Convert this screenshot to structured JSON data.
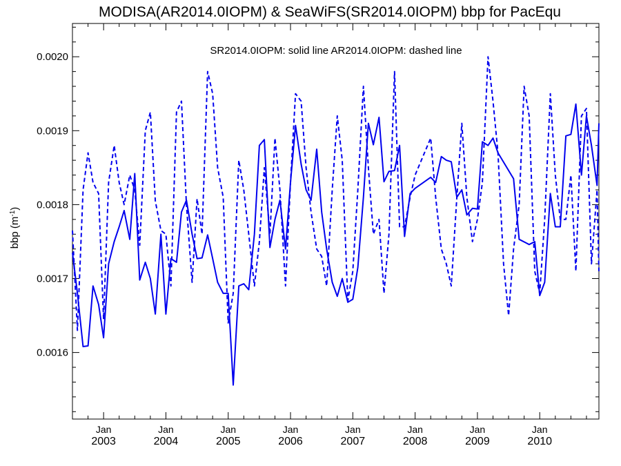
{
  "chart_data": {
    "type": "line",
    "title": "MODISA(AR2014.0IOPM) & SeaWiFS(SR2014.0IOPM)  bbp for PacEqu",
    "annotation": "SR2014.0IOPM: solid line   AR2014.0IOPM: dashed line",
    "ylabel": "bbp (m",
    "ylabel_sup": "-1",
    "ylabel_close": ")",
    "xlabel": "",
    "xlim": [
      2002.5,
      2010.95
    ],
    "ylim": [
      0.00151,
      0.002045
    ],
    "yticks": [
      {
        "value": 0.0016,
        "label": "0.0016"
      },
      {
        "value": 0.0017,
        "label": "0.0017"
      },
      {
        "value": 0.0018,
        "label": "0.0018"
      },
      {
        "value": 0.0019,
        "label": "0.0019"
      },
      {
        "value": 0.002,
        "label": "0.0020"
      }
    ],
    "xticks": [
      {
        "value": 2003.0,
        "month": "Jan",
        "year": "2003"
      },
      {
        "value": 2004.0,
        "month": "Jan",
        "year": "2004"
      },
      {
        "value": 2005.0,
        "month": "Jan",
        "year": "2005"
      },
      {
        "value": 2006.0,
        "month": "Jan",
        "year": "2006"
      },
      {
        "value": 2007.0,
        "month": "Jan",
        "year": "2007"
      },
      {
        "value": 2008.0,
        "month": "Jan",
        "year": "2008"
      },
      {
        "value": 2009.0,
        "month": "Jan",
        "year": "2009"
      },
      {
        "value": 2010.0,
        "month": "Jan",
        "year": "2010"
      }
    ],
    "grid": false,
    "colors": {
      "series": "#0000ee",
      "axis": "#000000"
    },
    "series": [
      {
        "style": "solid",
        "x": [
          2002.5,
          2002.58,
          2002.67,
          2002.75,
          2002.83,
          2002.92,
          2003.0,
          2003.08,
          2003.17,
          2003.25,
          2003.33,
          2003.42,
          2003.5,
          2003.58,
          2003.67,
          2003.75,
          2003.83,
          2003.92,
          2004.0,
          2004.08,
          2004.17,
          2004.25,
          2004.33,
          2004.42,
          2004.5,
          2004.58,
          2004.67,
          2004.75,
          2004.83,
          2004.92,
          2005.0,
          2005.08,
          2005.17,
          2005.25,
          2005.33,
          2005.42,
          2005.5,
          2005.58,
          2005.67,
          2005.75,
          2005.83,
          2005.92,
          2006.0,
          2006.08,
          2006.17,
          2006.25,
          2006.33,
          2006.42,
          2006.5,
          2006.58,
          2006.67,
          2006.75,
          2006.83,
          2006.92,
          2007.0,
          2007.08,
          2007.17,
          2007.25,
          2007.33,
          2007.42,
          2007.5,
          2007.58,
          2007.67,
          2007.75,
          2007.83,
          2007.92,
          2008.0,
          2008.25,
          2008.33,
          2008.42,
          2008.5,
          2008.58,
          2008.67,
          2008.75,
          2008.83,
          2008.92,
          2009.0,
          2009.08,
          2009.17,
          2009.25,
          2009.33,
          2009.58,
          2009.67,
          2009.83,
          2009.92,
          2010.0,
          2010.08,
          2010.17,
          2010.25,
          2010.33,
          2010.42,
          2010.5,
          2010.58,
          2010.67,
          2010.75,
          2010.83,
          2010.92,
          2010.95
        ],
        "y": [
          0.001735,
          0.00168,
          0.001608,
          0.001609,
          0.00169,
          0.001665,
          0.00162,
          0.00172,
          0.00175,
          0.00177,
          0.001792,
          0.001753,
          0.001842,
          0.001698,
          0.001722,
          0.0017,
          0.001652,
          0.00176,
          0.001652,
          0.001727,
          0.001722,
          0.00179,
          0.001806,
          0.00176,
          0.001727,
          0.001728,
          0.001759,
          0.001727,
          0.001695,
          0.00168,
          0.00168,
          0.001556,
          0.00169,
          0.001693,
          0.001685,
          0.00176,
          0.00188,
          0.001888,
          0.001742,
          0.00178,
          0.001806,
          0.00174,
          0.00183,
          0.001907,
          0.001855,
          0.00182,
          0.001806,
          0.001875,
          0.00179,
          0.00174,
          0.001695,
          0.001676,
          0.0017,
          0.001668,
          0.001672,
          0.001715,
          0.00181,
          0.00191,
          0.001881,
          0.001918,
          0.001831,
          0.001845,
          0.001846,
          0.00188,
          0.001757,
          0.001815,
          0.001822,
          0.001837,
          0.00183,
          0.001865,
          0.00186,
          0.001858,
          0.00181,
          0.00182,
          0.001786,
          0.001795,
          0.001794,
          0.001885,
          0.00188,
          0.00189,
          0.00187,
          0.001835,
          0.001753,
          0.001746,
          0.00175,
          0.001677,
          0.001695,
          0.001815,
          0.00177,
          0.00177,
          0.001893,
          0.001895,
          0.001936,
          0.00184,
          0.00192,
          0.00188,
          0.001826,
          0.00191
        ]
      },
      {
        "style": "dashed",
        "x": [
          2002.5,
          2002.58,
          2002.67,
          2002.75,
          2002.83,
          2002.92,
          2003.0,
          2003.08,
          2003.17,
          2003.25,
          2003.33,
          2003.42,
          2003.5,
          2003.58,
          2003.67,
          2003.75,
          2003.83,
          2003.92,
          2004.0,
          2004.08,
          2004.17,
          2004.25,
          2004.33,
          2004.42,
          2004.5,
          2004.58,
          2004.67,
          2004.75,
          2004.83,
          2004.92,
          2005.0,
          2005.08,
          2005.17,
          2005.25,
          2005.33,
          2005.42,
          2005.5,
          2005.58,
          2005.67,
          2005.75,
          2005.83,
          2005.92,
          2006.0,
          2006.08,
          2006.17,
          2006.25,
          2006.33,
          2006.42,
          2006.5,
          2006.58,
          2006.67,
          2006.75,
          2006.83,
          2006.92,
          2007.0,
          2007.08,
          2007.17,
          2007.25,
          2007.33,
          2007.42,
          2007.5,
          2007.58,
          2007.67,
          2007.75,
          2007.83,
          2007.92,
          2008.0,
          2008.25,
          2008.33,
          2008.42,
          2008.5,
          2008.58,
          2008.67,
          2008.75,
          2008.83,
          2008.92,
          2009.0,
          2009.08,
          2009.17,
          2009.25,
          2009.33,
          2009.42,
          2009.5,
          2009.58,
          2009.67,
          2009.75,
          2009.83,
          2009.92,
          2010.0,
          2010.08,
          2010.17,
          2010.25,
          2010.33,
          2010.42,
          2010.5,
          2010.58,
          2010.67,
          2010.75,
          2010.83,
          2010.92,
          2010.95
        ],
        "y": [
          0.001765,
          0.00163,
          0.00182,
          0.00187,
          0.00183,
          0.001815,
          0.001645,
          0.00183,
          0.00188,
          0.00183,
          0.0018,
          0.00184,
          0.00182,
          0.001745,
          0.0019,
          0.001925,
          0.001805,
          0.001765,
          0.00176,
          0.00169,
          0.001925,
          0.00194,
          0.0018,
          0.001695,
          0.001808,
          0.00176,
          0.00198,
          0.00195,
          0.00185,
          0.00181,
          0.00164,
          0.00168,
          0.00186,
          0.00182,
          0.00176,
          0.00169,
          0.00175,
          0.00185,
          0.00176,
          0.00189,
          0.00182,
          0.00169,
          0.00183,
          0.00195,
          0.00194,
          0.00185,
          0.00179,
          0.00174,
          0.00173,
          0.00169,
          0.00182,
          0.00192,
          0.00186,
          0.00167,
          0.00171,
          0.00182,
          0.00196,
          0.00185,
          0.00176,
          0.00178,
          0.00168,
          0.00176,
          0.00198,
          0.00177,
          0.00177,
          0.00181,
          0.00184,
          0.00189,
          0.00181,
          0.00174,
          0.00172,
          0.00169,
          0.00181,
          0.00191,
          0.00181,
          0.00175,
          0.00178,
          0.00183,
          0.002,
          0.00194,
          0.00187,
          0.00172,
          0.00165,
          0.00174,
          0.0018,
          0.00196,
          0.00192,
          0.00171,
          0.00168,
          0.00178,
          0.00195,
          0.00184,
          0.00178,
          0.00178,
          0.00184,
          0.00171,
          0.00192,
          0.00193,
          0.00172,
          0.00182,
          0.00171
        ]
      }
    ]
  }
}
